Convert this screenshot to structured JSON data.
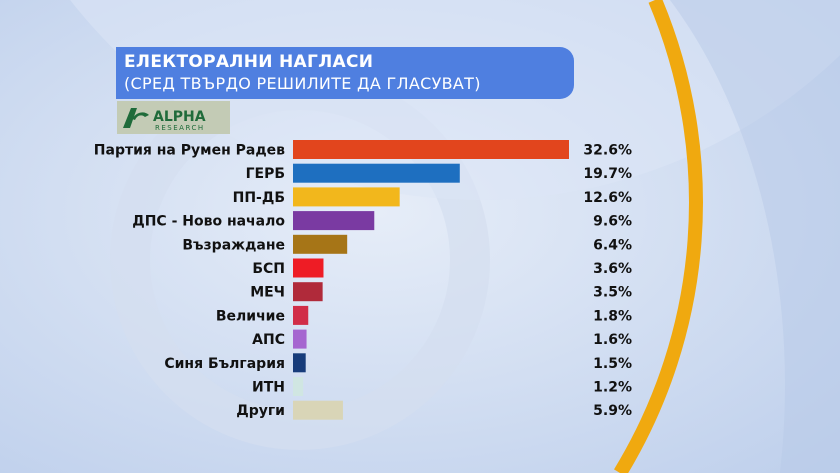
{
  "header": {
    "title": "ЕЛЕКТОРАЛНИ НАГЛАСИ",
    "subtitle": "(СРЕД ТВЪРДО РЕШИЛИТЕ ДА ГЛАСУВАТ)"
  },
  "logo": {
    "brand": "ALPHA",
    "sub": "RESEARCH",
    "color": "#1f6b3a"
  },
  "chart_data": {
    "type": "bar",
    "orientation": "horizontal",
    "title": "ЕЛЕКТОРАЛНИ НАГЛАСИ",
    "subtitle": "(СРЕД ТВЪРДО РЕШИЛИТЕ ДА ГЛАСУВАТ)",
    "xlabel": "",
    "ylabel": "",
    "unit": "%",
    "xlim": [
      0,
      32.6
    ],
    "grid": false,
    "categories": [
      "Партия на Румен Радев",
      "ГЕРБ",
      "ПП-ДБ",
      "ДПС - Ново начало",
      "Възраждане",
      "БСП",
      "МЕЧ",
      "Величие",
      "АПС",
      "Синя България",
      "ИТН",
      "Други"
    ],
    "values": [
      32.6,
      19.7,
      12.6,
      9.6,
      6.4,
      3.6,
      3.5,
      1.8,
      1.6,
      1.5,
      1.2,
      5.9
    ],
    "value_labels": [
      "32.6%",
      "19.7%",
      "12.6%",
      "9.6%",
      "6.4%",
      "3.6%",
      "3.5%",
      "1.8%",
      "1.6%",
      "1.5%",
      "1.2%",
      "5.9%"
    ],
    "colors": [
      "#e2451d",
      "#1e6fc0",
      "#f2b71c",
      "#7a3aa2",
      "#a67517",
      "#ee1c25",
      "#b02a3a",
      "#d12d48",
      "#a566d0",
      "#173c7a",
      "#d0e6e2",
      "#d9d5b7"
    ]
  }
}
